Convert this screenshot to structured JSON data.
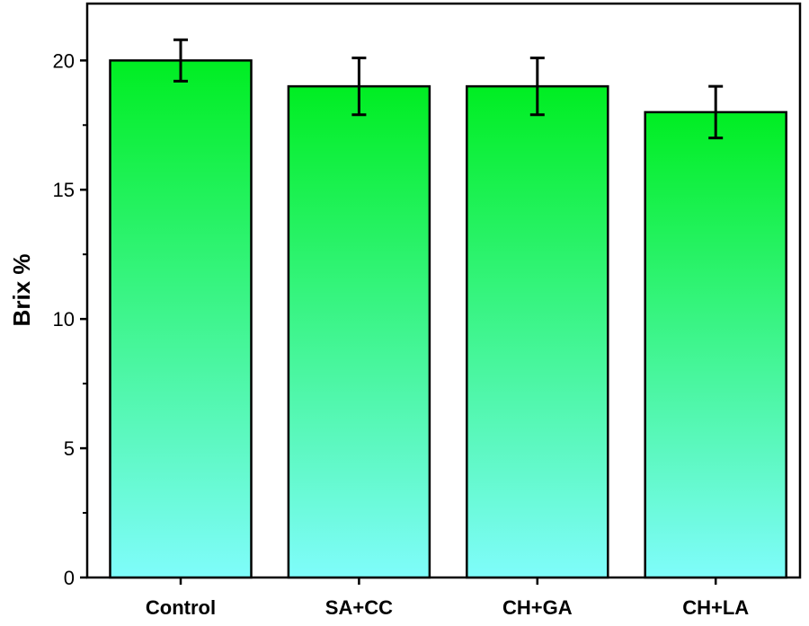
{
  "chart_data": {
    "type": "bar",
    "title": "",
    "xlabel": "",
    "ylabel": "Brix %",
    "ylim": [
      0,
      22.2
    ],
    "yticks": [
      0,
      5,
      10,
      15,
      20
    ],
    "grid": false,
    "categories": [
      "Control",
      "SA+CC",
      "CH+GA",
      "CH+LA"
    ],
    "series": [
      {
        "values": [
          20,
          19,
          19,
          18
        ],
        "error": [
          0.8,
          1.1,
          1.1,
          1.0
        ]
      }
    ],
    "colors": {
      "bar_top": "#00ee22",
      "bar_bottom": "#7ffcfb",
      "outline": "#000000"
    }
  }
}
